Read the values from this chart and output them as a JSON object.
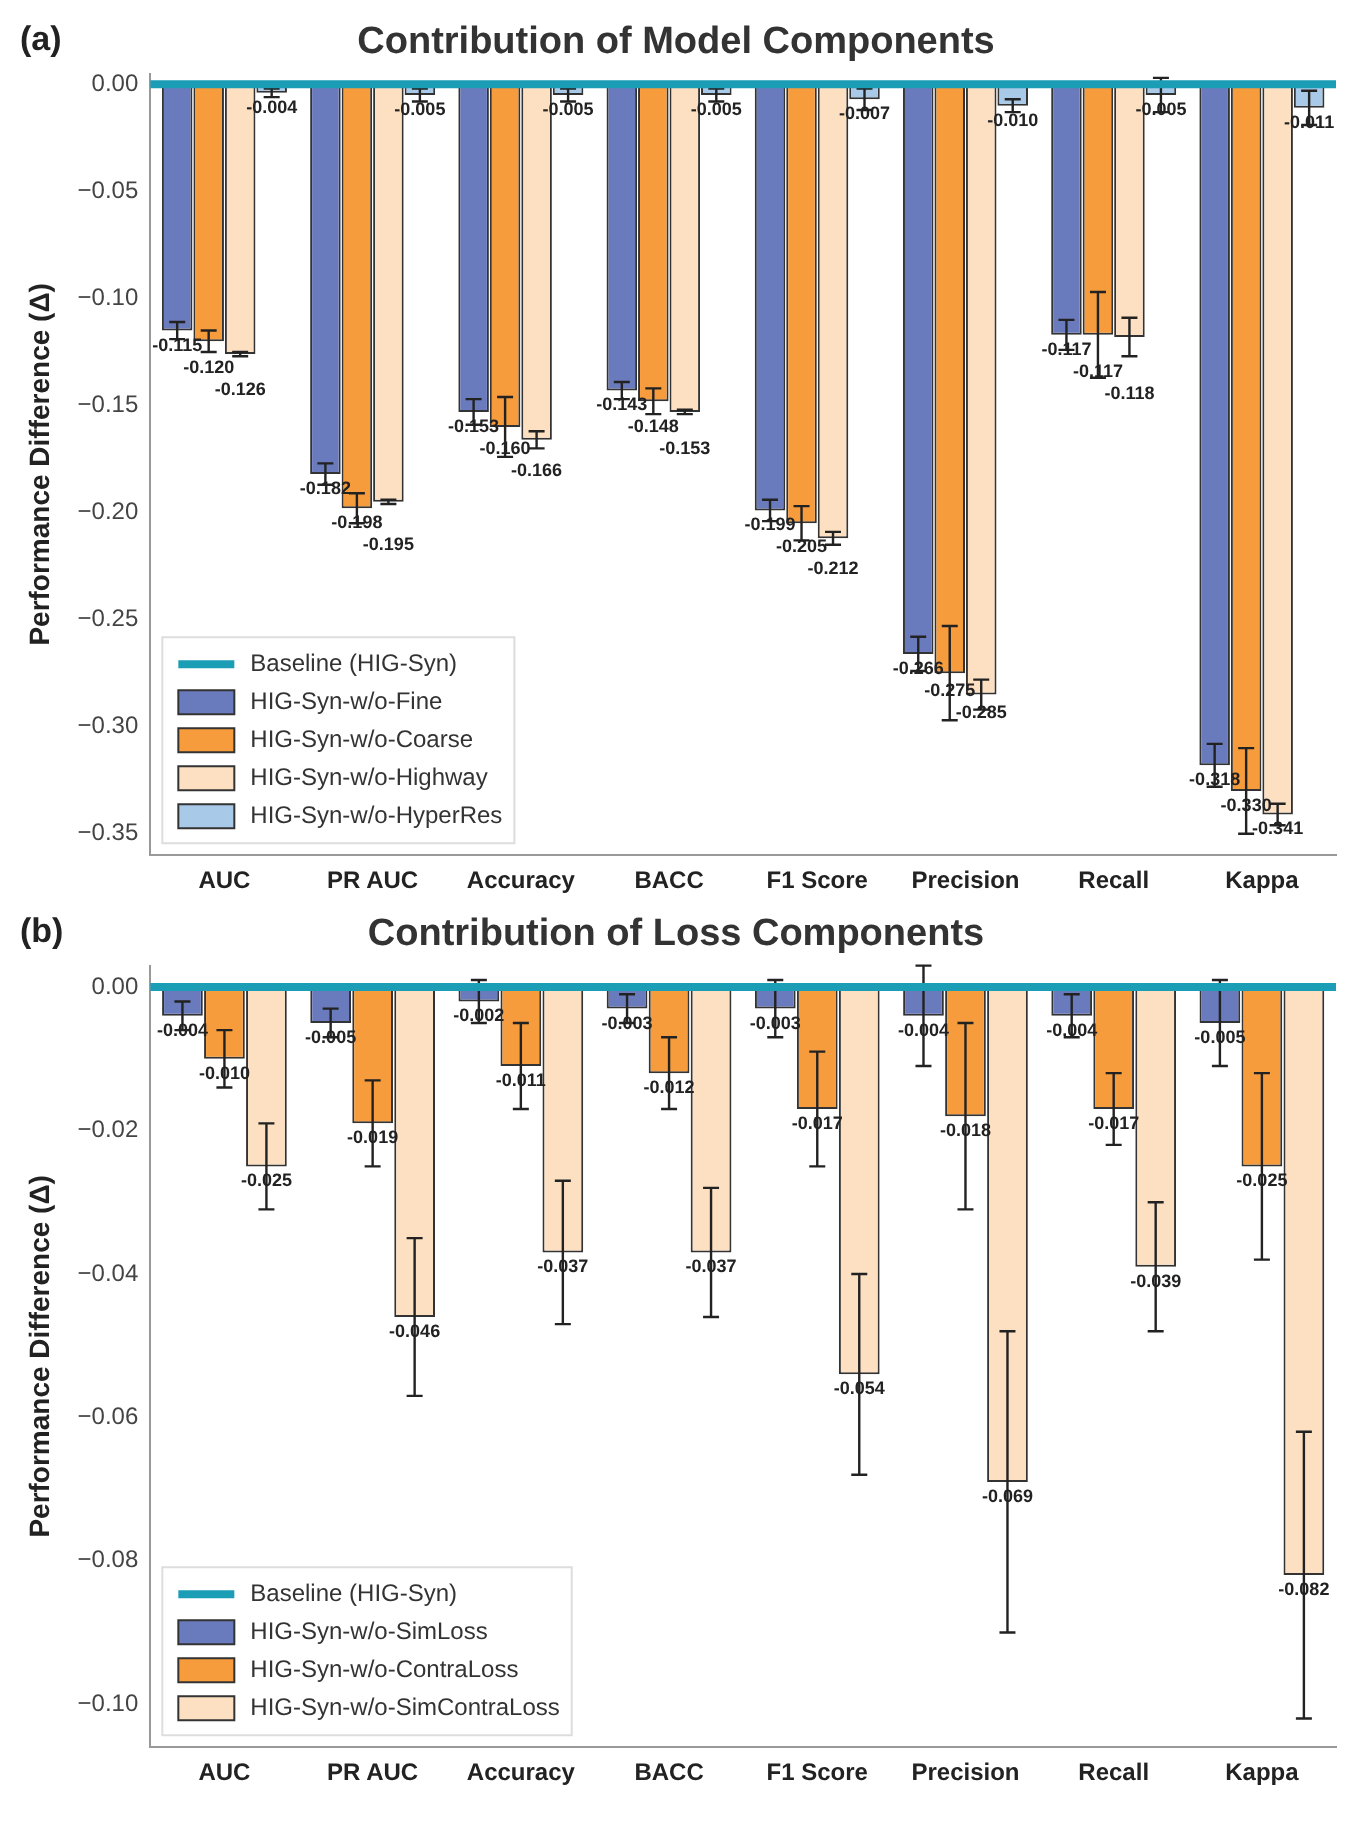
{
  "chart_data": [
    {
      "type": "bar",
      "title": "Contribution of Model Components",
      "ylabel": "Performance Difference (Δ)",
      "annotations": [
        "(a)"
      ],
      "categories": [
        "AUC",
        "PR AUC",
        "Accuracy",
        "BACC",
        "F1 Score",
        "Precision",
        "Recall",
        "Kappa"
      ],
      "series": [
        {
          "name": "HIG-Syn-w/o-Fine",
          "color": "#6a7bbd",
          "values": [
            -0.115,
            -0.182,
            -0.153,
            -0.143,
            -0.199,
            -0.266,
            -0.117,
            -0.318
          ],
          "errors": [
            0.004,
            0.005,
            0.006,
            0.004,
            0.005,
            0.008,
            0.007,
            0.01
          ],
          "value_labels": [
            "-0.115",
            "-0.182",
            "-0.153",
            "-0.143",
            "-0.199",
            "-0.266",
            "-0.117",
            "-0.318"
          ]
        },
        {
          "name": "HIG-Syn-w/o-Coarse",
          "color": "#f79c3c",
          "values": [
            -0.12,
            -0.198,
            -0.16,
            -0.148,
            -0.205,
            -0.275,
            -0.117,
            -0.33
          ],
          "errors": [
            0.005,
            0.007,
            0.014,
            0.006,
            0.008,
            0.022,
            0.02,
            0.02
          ],
          "value_labels": [
            "-0.120",
            "-0.198",
            "-0.160",
            "-0.148",
            "-0.205",
            "-0.275",
            "-0.117",
            "-0.330"
          ]
        },
        {
          "name": "HIG-Syn-w/o-Highway",
          "color": "#fde0c2",
          "values": [
            -0.126,
            -0.195,
            -0.166,
            -0.153,
            -0.212,
            -0.285,
            -0.118,
            -0.341
          ],
          "errors": [
            0.001,
            0.001,
            0.004,
            0.001,
            0.003,
            0.007,
            0.009,
            0.005
          ],
          "value_labels": [
            "-0.126",
            "-0.195",
            "-0.166",
            "-0.153",
            "-0.212",
            "-0.285",
            "-0.118",
            "-0.341"
          ]
        },
        {
          "name": "HIG-Syn-w/o-HyperRes",
          "color": "#a9c9e9",
          "values": [
            -0.004,
            -0.005,
            -0.005,
            -0.005,
            -0.007,
            -0.01,
            -0.005,
            -0.011
          ],
          "errors": [
            0.002,
            0.003,
            0.003,
            0.003,
            0.005,
            0.003,
            0.008,
            0.008
          ],
          "value_labels": [
            "-0.004",
            "-0.005",
            "-0.005",
            "-0.005",
            "-0.007",
            "-0.010",
            "-0.005",
            "-0.011"
          ]
        }
      ],
      "ylim": [
        -0.36,
        0.005
      ],
      "yticks": [
        {
          "value": 0,
          "label": "0.00"
        },
        {
          "value": -0.05,
          "label": "−0.05"
        },
        {
          "value": -0.1,
          "label": "−0.10"
        },
        {
          "value": -0.15,
          "label": "−0.15"
        },
        {
          "value": -0.2,
          "label": "−0.20"
        },
        {
          "value": -0.25,
          "label": "−0.25"
        },
        {
          "value": -0.3,
          "label": "−0.30"
        },
        {
          "value": -0.35,
          "label": "−0.35"
        }
      ],
      "ref_lines": [
        {
          "axis": "y",
          "value": 0,
          "label": "Baseline (HIG-Syn)",
          "color": "#1c9db6"
        }
      ],
      "legend": "bottom left"
    },
    {
      "type": "bar",
      "title": "Contribution of Loss Components",
      "ylabel": "Performance Difference (Δ)",
      "annotations": [
        "(b)"
      ],
      "categories": [
        "AUC",
        "PR AUC",
        "Accuracy",
        "BACC",
        "F1 Score",
        "Precision",
        "Recall",
        "Kappa"
      ],
      "series": [
        {
          "name": "HIG-Syn-w/o-SimLoss",
          "color": "#6a7bbd",
          "values": [
            -0.004,
            -0.005,
            -0.002,
            -0.003,
            -0.003,
            -0.004,
            -0.004,
            -0.005
          ],
          "errors": [
            0.002,
            0.002,
            0.003,
            0.002,
            0.004,
            0.007,
            0.003,
            0.006
          ],
          "value_labels": [
            "-0.004",
            "-0.005",
            "-0.002",
            "-0.003",
            "-0.003",
            "-0.004",
            "-0.004",
            "-0.005"
          ]
        },
        {
          "name": "HIG-Syn-w/o-ContraLoss",
          "color": "#f79c3c",
          "values": [
            -0.01,
            -0.019,
            -0.011,
            -0.012,
            -0.017,
            -0.018,
            -0.017,
            -0.025
          ],
          "errors": [
            0.004,
            0.006,
            0.006,
            0.005,
            0.008,
            0.013,
            0.005,
            0.013
          ],
          "value_labels": [
            "-0.010",
            "-0.019",
            "-0.011",
            "-0.012",
            "-0.017",
            "-0.018",
            "-0.017",
            "-0.025"
          ]
        },
        {
          "name": "HIG-Syn-w/o-SimContraLoss",
          "color": "#fde0c2",
          "values": [
            -0.025,
            -0.046,
            -0.037,
            -0.037,
            -0.054,
            -0.069,
            -0.039,
            -0.082
          ],
          "errors": [
            0.006,
            0.011,
            0.01,
            0.009,
            0.014,
            0.021,
            0.009,
            0.02
          ],
          "value_labels": [
            "-0.025",
            "-0.046",
            "-0.037",
            "-0.037",
            "-0.054",
            "-0.069",
            "-0.039",
            "-0.082"
          ]
        }
      ],
      "ylim": [
        -0.106,
        0.003
      ],
      "yticks": [
        {
          "value": 0,
          "label": "0.00"
        },
        {
          "value": -0.02,
          "label": "−0.02"
        },
        {
          "value": -0.04,
          "label": "−0.04"
        },
        {
          "value": -0.06,
          "label": "−0.06"
        },
        {
          "value": -0.08,
          "label": "−0.08"
        },
        {
          "value": -0.1,
          "label": "−0.10"
        }
      ],
      "ref_lines": [
        {
          "axis": "y",
          "value": 0,
          "label": "Baseline (HIG-Syn)",
          "color": "#1c9db6"
        }
      ],
      "legend": "bottom left"
    }
  ]
}
